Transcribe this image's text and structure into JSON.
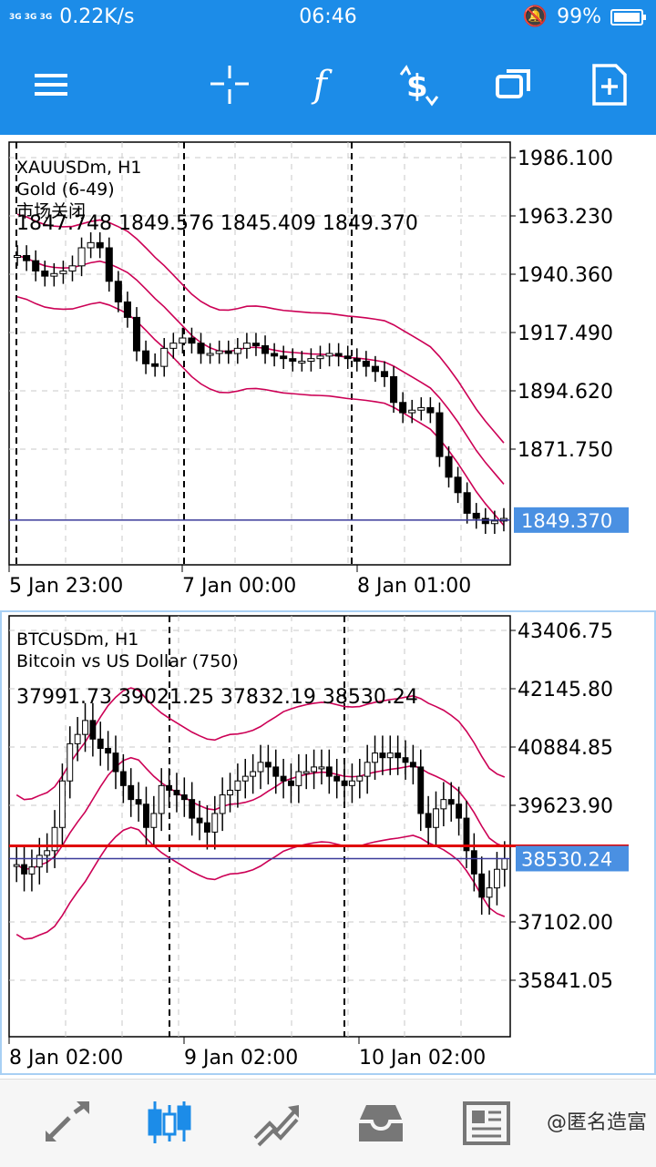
{
  "status_bar": {
    "signal": "3G 3G 3G",
    "speed": "0.22K/s",
    "time": "06:46",
    "battery": "99%",
    "battery_level": 0.99
  },
  "toolbar": {
    "icons": [
      "menu-icon",
      "crosshair-icon",
      "indicators-icon",
      "trade-icon",
      "windows-icon",
      "new-order-icon"
    ]
  },
  "chart1": {
    "symbol": "XAUUSDm, H1",
    "description": "Gold (6-49)",
    "status": "市场关闭",
    "ohlc": "1847.748 1849.576 1845.409 1849.370",
    "price_label": "1849.370",
    "colors": {
      "band": "#cc0055",
      "price_tag": "#4a90e2"
    }
  },
  "chart2": {
    "symbol": "BTCUSDm, H1",
    "description": "Bitcoin vs US Dollar (750)",
    "ohlc": "37991.73 39021.25 37832.19 38530.24",
    "price_label": "38530.24",
    "colors": {
      "band": "#cc0055",
      "price_tag": "#4a90e2",
      "ask_line": "#e00000"
    }
  },
  "bottom_nav": {
    "icons": [
      "quotes-icon",
      "chart-icon",
      "trade-icon",
      "history-icon",
      "news-icon"
    ],
    "active": "chart-icon"
  },
  "watermark": "@匿名造富",
  "chart_data": [
    {
      "type": "candlestick",
      "title": "XAUUSDm, H1",
      "y_ticks": [
        "1986.100",
        "1963.230",
        "1940.360",
        "1917.490",
        "1894.620",
        "1871.750"
      ],
      "x_ticks": [
        "5 Jan 23:00",
        "7 Jan 00:00",
        "8 Jan 01:00"
      ],
      "ylim": [
        1832,
        1996
      ],
      "last_price": 1849.37,
      "series": [
        {
          "name": "Gold (6-49)",
          "values": [
            1952,
            1950,
            1946,
            1944,
            1945,
            1946,
            1948,
            1955,
            1957,
            1955,
            1942,
            1934,
            1928,
            1915,
            1910,
            1909,
            1916,
            1918,
            1920,
            1918,
            1914,
            1914,
            1915,
            1914,
            1916,
            1918,
            1917,
            1914,
            1913,
            1912,
            1911,
            1911,
            1912,
            1913,
            1914,
            1913,
            1912,
            1911,
            1909,
            1907,
            1905,
            1895,
            1891,
            1892,
            1893,
            1891,
            1874,
            1866,
            1860,
            1852,
            1850,
            1848,
            1849,
            1850
          ]
        }
      ]
    },
    {
      "type": "candlestick",
      "title": "BTCUSDm, H1",
      "y_ticks": [
        "43406.75",
        "42145.80",
        "40884.85",
        "39623.90",
        "37102.00",
        "35841.05"
      ],
      "x_ticks": [
        "8 Jan 02:00",
        "9 Jan 02:00",
        "10 Jan 02:00"
      ],
      "ylim": [
        34700,
        43750
      ],
      "last_price": 38530.24,
      "series": [
        {
          "name": "Bitcoin vs US Dollar (750)",
          "values": [
            38400,
            38200,
            38350,
            38600,
            38700,
            39200,
            40200,
            41000,
            41200,
            41500,
            41100,
            40900,
            40800,
            40400,
            40100,
            39800,
            39700,
            39200,
            39500,
            40100,
            40000,
            39900,
            39800,
            39400,
            39300,
            39100,
            39500,
            39900,
            40000,
            40200,
            40300,
            40400,
            40600,
            40500,
            40300,
            40200,
            40100,
            40400,
            40400,
            40500,
            40500,
            40300,
            40200,
            40100,
            40200,
            40300,
            40600,
            40800,
            40700,
            40800,
            40700,
            40600,
            40500,
            39500,
            39200,
            39600,
            39800,
            39700,
            39400,
            38700,
            38200,
            37700,
            37900,
            38300,
            38530
          ]
        }
      ]
    }
  ]
}
